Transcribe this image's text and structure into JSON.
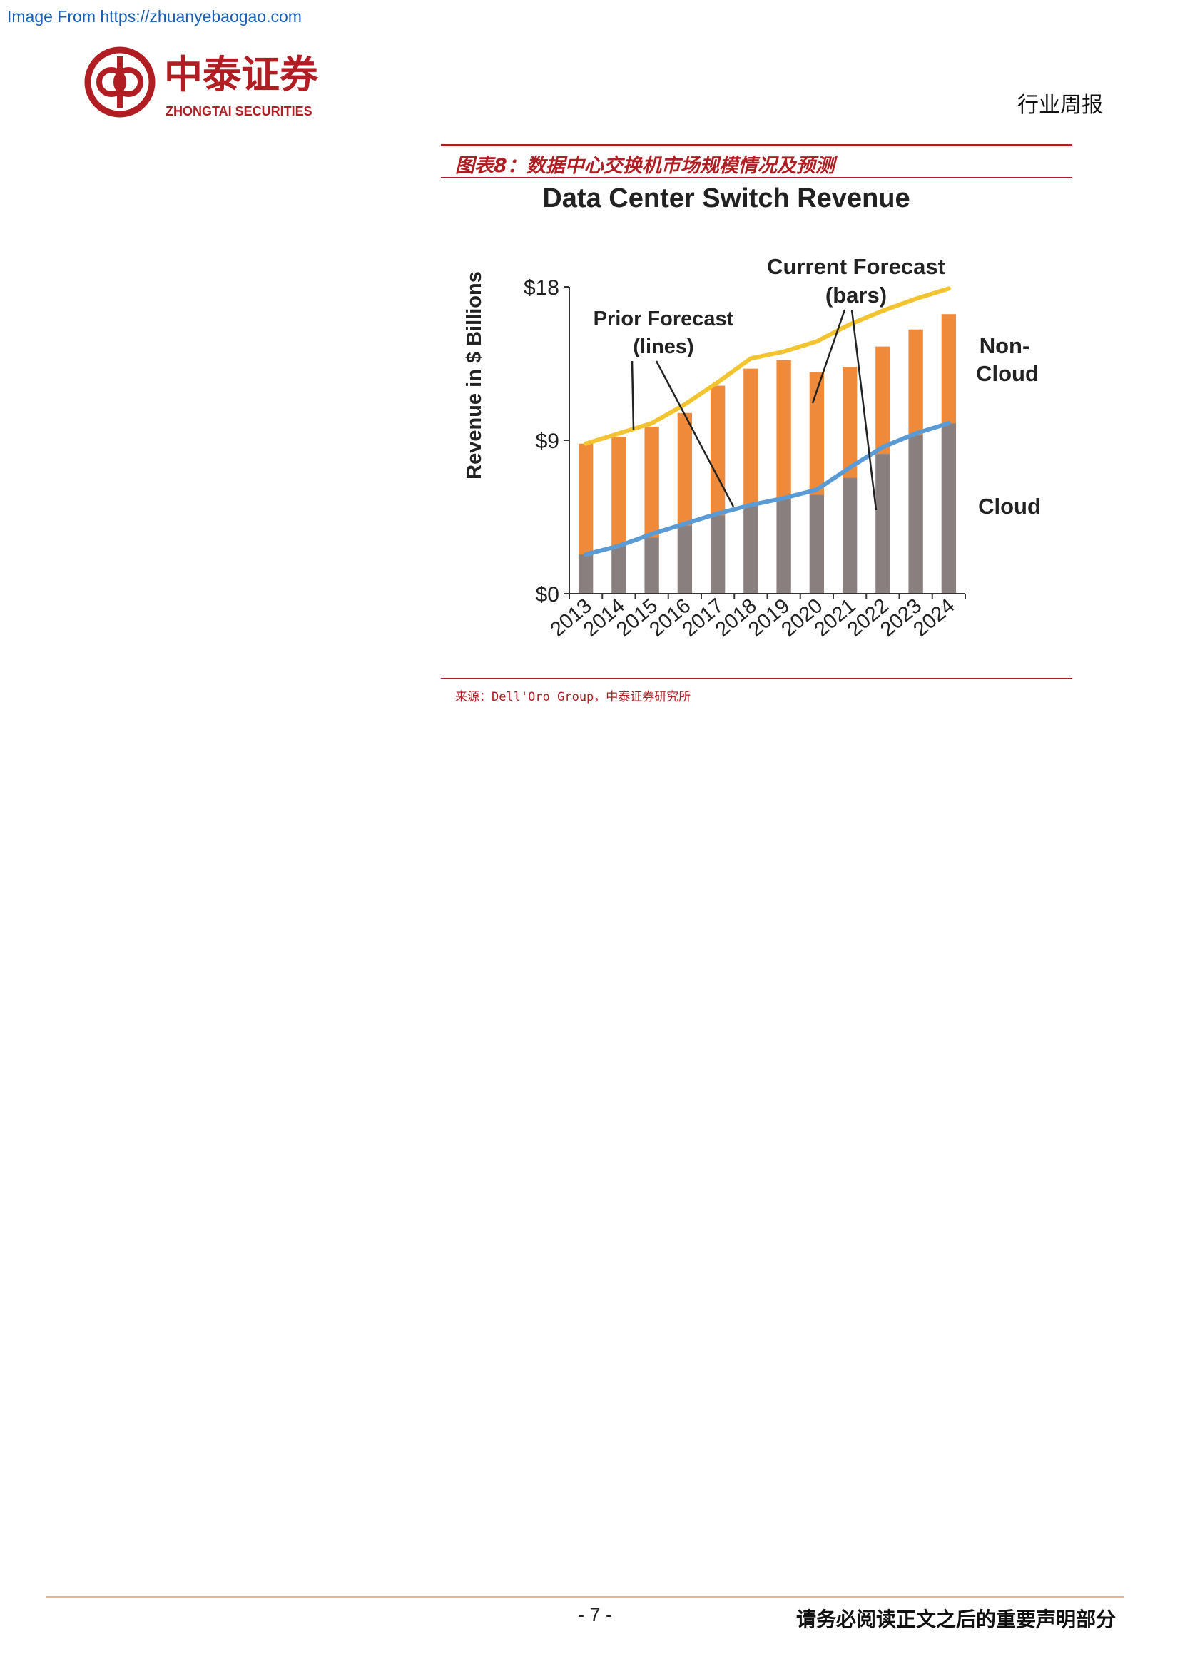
{
  "watermark": "Image From https://zhuanyebaogao.com",
  "logo": {
    "cn": "中泰证券",
    "en": "ZHONGTAI SECURITIES",
    "brand_color": "#b01e23"
  },
  "header": {
    "label": "行业周报"
  },
  "figure": {
    "title": "图表8：数据中心交换机市场规模情况及预测",
    "source": "来源：Dell'Oro Group，中泰证券研究所"
  },
  "chart_data": {
    "type": "bar",
    "title": "Data Center Switch Revenue",
    "ylabel": "Revenue in $ Billions",
    "xlabel": "",
    "ylim": [
      0,
      18
    ],
    "yticks": [
      "$0",
      "$9",
      "$18"
    ],
    "categories": [
      "2013",
      "2014",
      "2015",
      "2016",
      "2017",
      "2018",
      "2019",
      "2020",
      "2021",
      "2022",
      "2023",
      "2024"
    ],
    "stacked": true,
    "series": [
      {
        "name": "Cloud",
        "color": "#8a7f7f",
        "values": [
          2.3,
          2.8,
          3.3,
          4.0,
          4.6,
          5.2,
          5.6,
          5.8,
          6.8,
          8.2,
          9.3,
          10.0
        ]
      },
      {
        "name": "Non-Cloud",
        "color": "#ee8a3a",
        "values": [
          6.5,
          6.4,
          6.5,
          6.6,
          7.6,
          8.0,
          8.1,
          7.2,
          6.5,
          6.3,
          6.2,
          6.4
        ]
      }
    ],
    "lines": [
      {
        "color": "#f2c430",
        "values": [
          8.8,
          9.4,
          10.0,
          11.1,
          12.4,
          13.8,
          14.2,
          14.8,
          15.8,
          16.6,
          17.3,
          17.9
        ]
      },
      {
        "color": "#5b9bd5",
        "values": [
          2.3,
          2.8,
          3.5,
          4.1,
          4.7,
          5.2,
          5.6,
          6.1,
          7.4,
          8.6,
          9.4,
          10.0
        ]
      }
    ],
    "annotations": {
      "prior_forecast": [
        "Prior Forecast",
        "(lines)"
      ],
      "current_forecast": [
        "Current Forecast",
        "(bars)"
      ],
      "non_cloud": [
        "Non-",
        "Cloud"
      ],
      "cloud": "Cloud"
    },
    "grid": false,
    "legend": "none"
  },
  "footer": {
    "page_number": "- 7 -",
    "note": "请务必阅读正文之后的重要声明部分"
  }
}
